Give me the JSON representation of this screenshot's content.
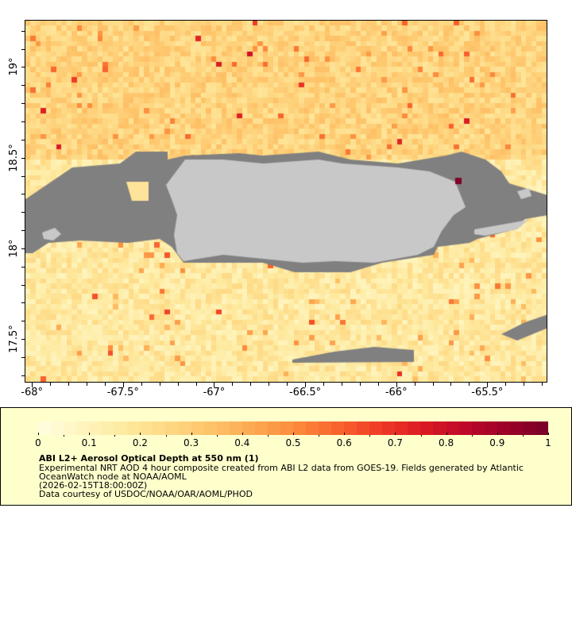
{
  "map": {
    "lon_range": [
      -68.04,
      -65.17
    ],
    "lat_range": [
      17.26,
      19.26
    ],
    "lon_labels": [
      "-68°",
      "-67.5°",
      "-67°",
      "-66.5°",
      "-66°",
      "-65.5°"
    ],
    "lon_values": [
      -68,
      -67.5,
      -67,
      -66.5,
      -66,
      -65.5
    ],
    "lat_labels": [
      "19°",
      "18.5°",
      "18°",
      "17.5°"
    ],
    "lat_values": [
      19,
      18.5,
      18,
      17.5
    ],
    "land_color": "#c8c8c8",
    "cloud_color": "#808080"
  },
  "legend": {
    "range": [
      0,
      1
    ],
    "tick_labels": [
      "0",
      "0.1",
      "0.2",
      "0.3",
      "0.4",
      "0.5",
      "0.6",
      "0.7",
      "0.8",
      "0.9",
      "1"
    ],
    "colors": [
      "#fffee0",
      "#fff5c0",
      "#feeaa0",
      "#fed985",
      "#fec46a",
      "#fdaa52",
      "#fc8c3c",
      "#f9662e",
      "#ef3d26",
      "#dc1c22",
      "#c0082a",
      "#9c0028",
      "#780028"
    ],
    "title": "ABI L2+ Aerosol Optical Depth at 550 nm (1)",
    "line1": "Experimental NRT AOD 4 hour composite created from ABI L2 data from GOES-19. Fields generated by Atlantic",
    "line2": "OceanWatch node at NOAA/AOML",
    "line3": "(2026-02-15T18:00:00Z)",
    "line4": "Data courtesy of USDOC/NOAA/OAR/AOML/PHOD"
  }
}
